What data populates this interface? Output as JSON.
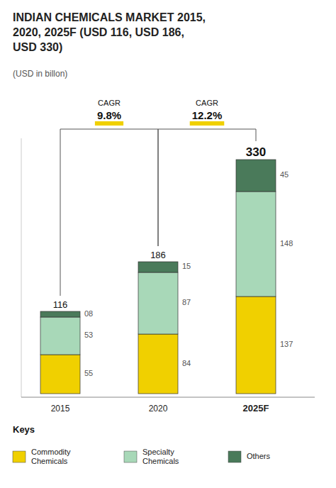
{
  "chart_data": {
    "type": "bar",
    "stacked": true,
    "data_labels": true,
    "title": "INDIAN CHEMICALS MARKET 2015,\n2020, 2025F (USD 116, USD 186,\nUSD 330)",
    "subtitle": "(USD in billon)",
    "categories": [
      "2015",
      "2020",
      "2025F"
    ],
    "series": [
      {
        "name": "Commodity\nChemicals",
        "color": "#f0d000",
        "values": [
          55,
          84,
          137
        ]
      },
      {
        "name": "Specialty\nChemicals",
        "color": "#a8d8b8",
        "values": [
          53,
          87,
          148
        ]
      },
      {
        "name": "Others",
        "color": "#4a7a5a",
        "values": [
          8,
          15,
          45
        ],
        "value_labels": [
          "08",
          "15",
          "45"
        ]
      }
    ],
    "totals": [
      116,
      186,
      330
    ],
    "annotations": [
      {
        "text": "CAGR",
        "value": 9.8,
        "label": "9.8%",
        "start": "2015",
        "end": "2020",
        "color": "#f0d000"
      },
      {
        "text": "CAGR",
        "value": 12.2,
        "label": "12.2%",
        "start": "2020",
        "end": "2025F",
        "color": "#f0d000"
      }
    ],
    "ylim": [
      -5,
      360
    ],
    "tick_labels": "x",
    "grid": false,
    "legend": "bottom",
    "legend_title": "Keys"
  }
}
